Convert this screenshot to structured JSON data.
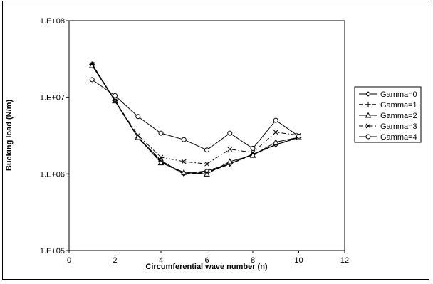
{
  "chart_data": {
    "type": "line",
    "title": "",
    "xlabel": "Circumferential wave number (n)",
    "ylabel": "Bucking load (N/m)",
    "xlim": [
      0,
      12
    ],
    "ylim": [
      100000,
      100000000
    ],
    "yscale": "log",
    "xticks": [
      0,
      2,
      4,
      6,
      8,
      10,
      12
    ],
    "xtick_labels": [
      "0",
      "2",
      "4",
      "6",
      "8",
      "10",
      "12"
    ],
    "yticks": [
      100000,
      1000000,
      10000000,
      100000000
    ],
    "ytick_labels": [
      "1.E+05",
      "1.E+06",
      "1.E+07",
      "1.E+08"
    ],
    "grid": false,
    "legend_position": "right",
    "x": [
      1,
      2,
      3,
      4,
      5,
      6,
      7,
      8,
      9,
      10
    ],
    "series": [
      {
        "name": "Gamma=0",
        "marker": "diamond",
        "dash": "solid",
        "values": [
          27000000,
          9000000,
          3000000,
          1500000,
          1000000,
          1100000,
          1350000,
          1800000,
          2400000,
          3000000
        ]
      },
      {
        "name": "Gamma=1",
        "marker": "plus",
        "dash": "dashed",
        "values": [
          27000000,
          9000000,
          3000000,
          1450000,
          1000000,
          1050000,
          1350000,
          1800000,
          2400000,
          3000000
        ]
      },
      {
        "name": "Gamma=2",
        "marker": "triangle",
        "dash": "solid",
        "values": [
          26000000,
          9000000,
          3000000,
          1400000,
          1050000,
          1000000,
          1450000,
          1750000,
          2600000,
          3000000
        ]
      },
      {
        "name": "Gamma=3",
        "marker": "cross",
        "dash": "dashdot",
        "values": [
          27000000,
          9000000,
          3200000,
          1650000,
          1450000,
          1350000,
          2100000,
          1900000,
          3500000,
          3200000
        ]
      },
      {
        "name": "Gamma=4",
        "marker": "circle",
        "dash": "solid",
        "values": [
          17000000,
          10500000,
          5600000,
          3400000,
          2800000,
          2050000,
          3400000,
          2150000,
          5000000,
          3100000
        ]
      }
    ]
  }
}
